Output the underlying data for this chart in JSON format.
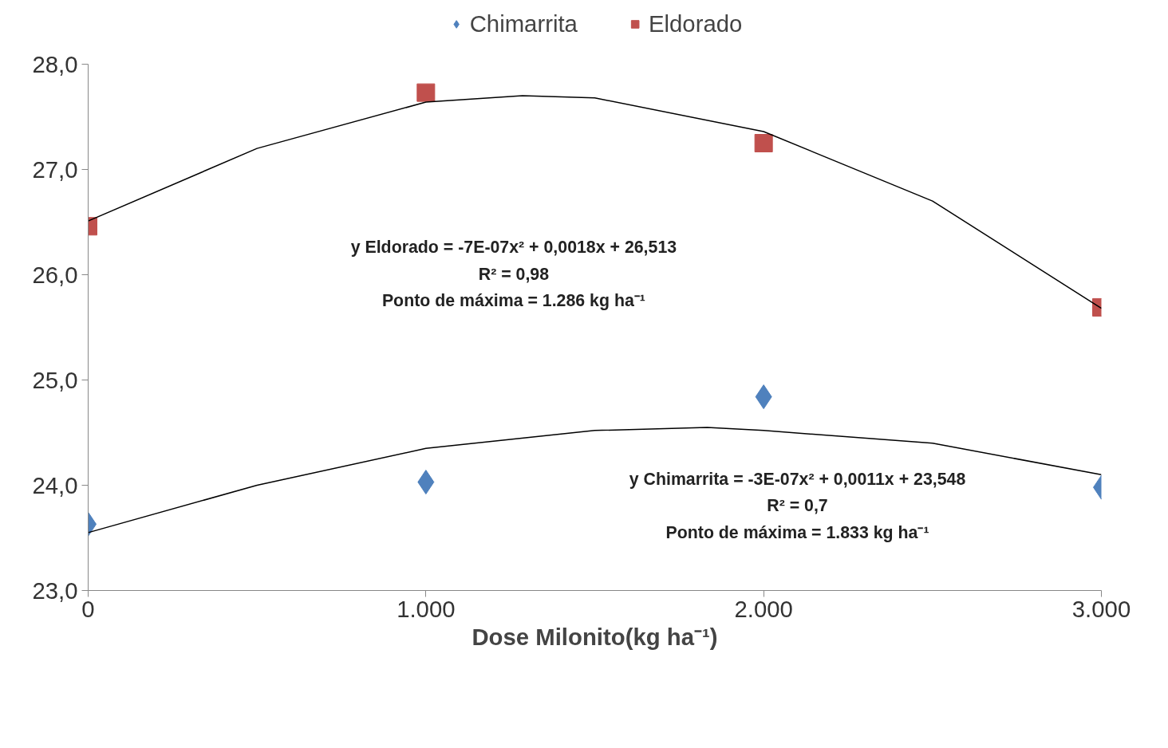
{
  "chart_data": {
    "type": "scatter",
    "xlabel": "Dose Milonito(kg ha⁻¹)",
    "xlim": [
      0,
      3000
    ],
    "xticks": [
      0,
      {
        "value": 1000,
        "label": "1.000"
      },
      {
        "value": 2000,
        "label": "2.000"
      },
      {
        "value": 3000,
        "label": "3.000"
      }
    ],
    "ylim": [
      23,
      28
    ],
    "yticks": [
      {
        "value": 23,
        "label": "23,0"
      },
      {
        "value": 24,
        "label": "24,0"
      },
      {
        "value": 25,
        "label": "25,0"
      },
      {
        "value": 26,
        "label": "26,0"
      },
      {
        "value": 27,
        "label": "27,0"
      },
      {
        "value": 28,
        "label": "28,0"
      }
    ],
    "grid": false,
    "legend": "top",
    "series": [
      {
        "name": "Chimarrita",
        "type": "scatter",
        "marker": "diamond",
        "color": "#4f81bd",
        "x": [
          0,
          1000,
          2000,
          3000
        ],
        "values": [
          23.63,
          24.03,
          24.84,
          23.98
        ]
      },
      {
        "name": "Eldorado",
        "type": "scatter",
        "marker": "square",
        "color": "#c0504d",
        "x": [
          0,
          1000,
          2000,
          3000
        ],
        "values": [
          26.46,
          27.73,
          27.25,
          25.69
        ]
      },
      {
        "type": "line",
        "color": "#000000",
        "x": [
          0,
          500,
          1000,
          1500,
          1833,
          2000,
          2500,
          3000
        ],
        "values": [
          23.55,
          24.0,
          24.35,
          24.52,
          24.55,
          24.52,
          24.4,
          24.1
        ]
      },
      {
        "type": "line",
        "color": "#000000",
        "x": [
          0,
          500,
          1000,
          1286,
          1500,
          2000,
          2500,
          3000
        ],
        "values": [
          26.51,
          27.2,
          27.64,
          27.7,
          27.68,
          27.36,
          26.7,
          25.68
        ]
      }
    ],
    "annotations": [
      "y Eldorado = -7E-07x² + 0,0018x + 26,513\nR² = 0,98\nPonto de máxima = 1.286 kg ha⁻¹",
      "y Chimarrita = -3E-07x² + 0,0011x + 23,548\nR² = 0,7\nPonto de máxima = 1.833 kg ha⁻¹"
    ]
  }
}
